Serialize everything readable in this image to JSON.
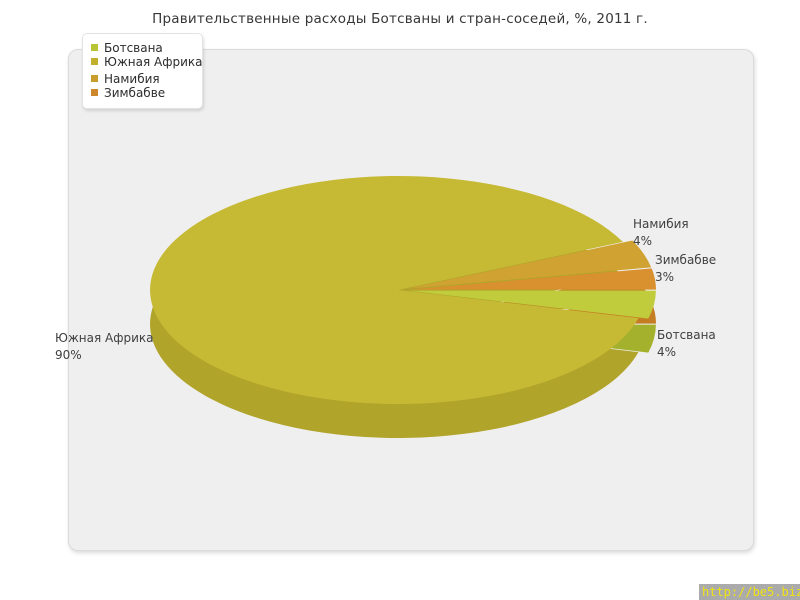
{
  "title": "Правительственные расходы Ботсваны и стран-соседей, %, 2011 г.",
  "watermark": "http://be5.biz/",
  "chart_data": {
    "type": "pie",
    "title": "Правительственные расходы Ботсваны и стран-соседей, %, 2011 г.",
    "unit": "%",
    "effect_3d": true,
    "legend_position": "top-left",
    "start_angle": 0,
    "direction": "clockwise",
    "slices": [
      {
        "label": "Ботсвана",
        "value": 4,
        "pct": "4%",
        "exploded": true,
        "color": "#c0cc3b",
        "side_color": "#a4b12c",
        "legend_color": "#b7c433"
      },
      {
        "label": "Южная Африка",
        "value": 90,
        "pct": "90%",
        "exploded": false,
        "color": "#c6ba35",
        "side_color": "#b1a42a",
        "legend_color": "#c2b02d"
      },
      {
        "label": "Намибия",
        "value": 4,
        "pct": "4%",
        "exploded": true,
        "color": "#d0a232",
        "side_color": "#ba8d26",
        "legend_color": "#c89d2b"
      },
      {
        "label": "Зимбабве",
        "value": 3,
        "pct": "3%",
        "exploded": true,
        "color": "#d9912f",
        "side_color": "#c57d23",
        "legend_color": "#cd882e"
      }
    ]
  }
}
